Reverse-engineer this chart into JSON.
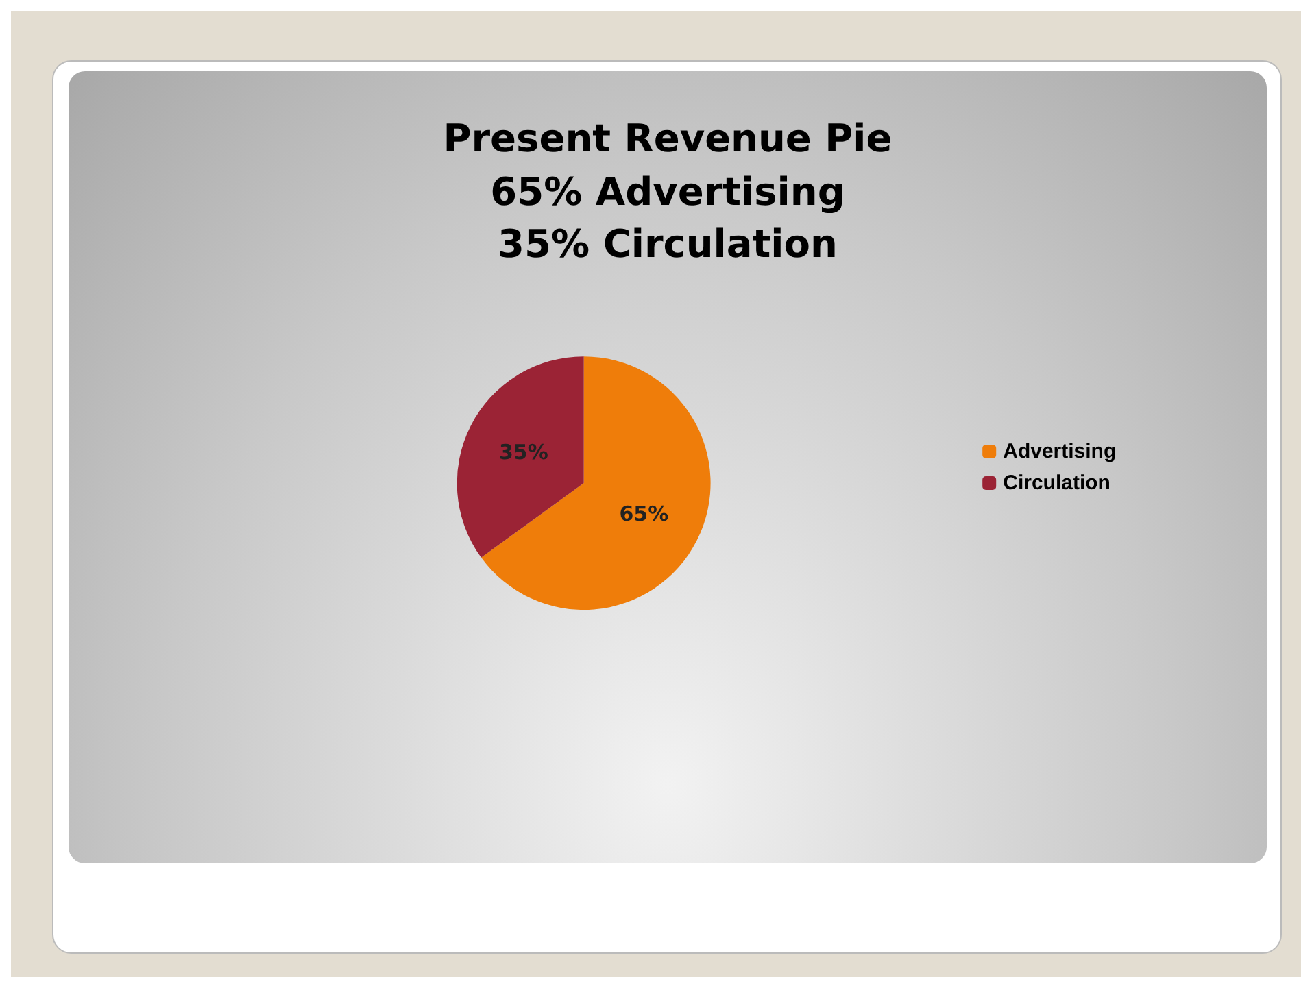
{
  "chart_data": {
    "type": "pie",
    "title": "Present Revenue Pie",
    "subtitle": "65% Advertising\n35% Circulation",
    "categories": [
      "Advertising",
      "Circulation"
    ],
    "values": [
      65,
      35
    ],
    "colors": [
      "#ef7d0a",
      "#9b2335"
    ],
    "value_labels": [
      "65%",
      "35%"
    ],
    "legend": "right"
  }
}
